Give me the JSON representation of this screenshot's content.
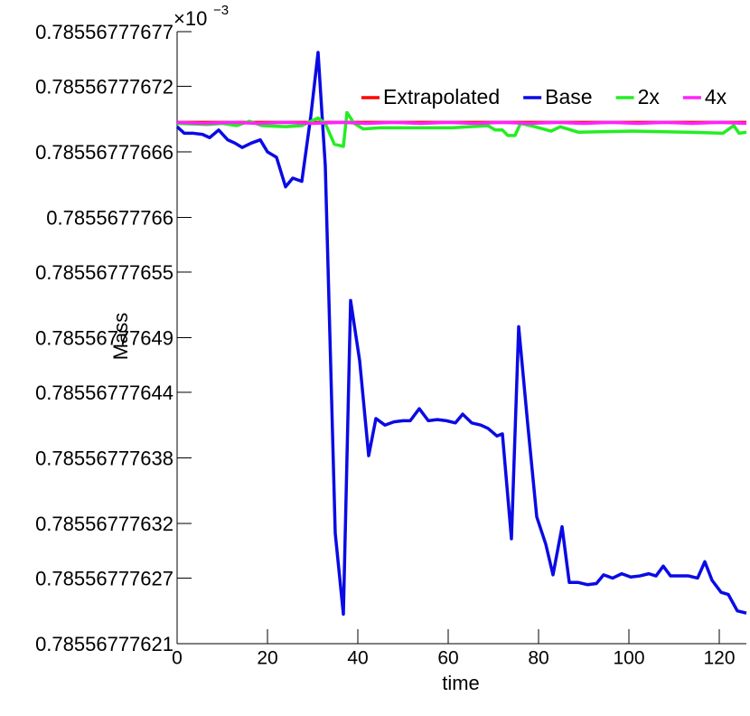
{
  "chart_data": {
    "type": "line",
    "x_label": "time",
    "y_label": "Mass",
    "y_multiplier": "×10",
    "y_multiplier_exponent": "−3",
    "xlim": [
      0,
      126
    ],
    "xticks": [
      0,
      20,
      40,
      60,
      80,
      100,
      120
    ],
    "ylim": [
      0.78556777621,
      0.78556777677
    ],
    "yticks": [
      0.78556777621,
      0.78556777627,
      0.78556777632,
      0.78556777638,
      0.78556777644,
      0.78556777649,
      0.78556777655,
      0.7855677766,
      0.78556777666,
      0.78556777672,
      0.78556777677
    ],
    "legend": "top-right",
    "series": [
      {
        "name": "Extrapolated",
        "color": "#ff0000",
        "x": [
          0,
          126
        ],
        "values": [
          0.785567776687,
          0.785567776687
        ]
      },
      {
        "name": "Base",
        "color": "#0a0ae6",
        "x": [
          0,
          1.6,
          3.6,
          5.6,
          7.2,
          9.2,
          11.2,
          12.8,
          14.4,
          16.4,
          18.4,
          20,
          22,
          24,
          25.6,
          27.6,
          29.6,
          31.2,
          32.8,
          35,
          36.8,
          38.4,
          40.4,
          42.4,
          44,
          46,
          48,
          50,
          51.6,
          53.6,
          55.6,
          57.6,
          59.6,
          61.6,
          63.2,
          65.2,
          67.2,
          68.8,
          70.8,
          72,
          74,
          75.6,
          77.6,
          79.6,
          81.6,
          83.2,
          85.2,
          86.8,
          88.8,
          90.8,
          92.8,
          94.4,
          96.4,
          98.4,
          100.4,
          102.4,
          104.4,
          106,
          107.6,
          109.2,
          111.2,
          113.2,
          115.2,
          116.8,
          118.4,
          120.4,
          122,
          124,
          126
        ],
        "values": [
          0.785567776683,
          0.785567776677,
          0.785567776677,
          0.785567776676,
          0.785567776673,
          0.78556777668,
          0.785567776671,
          0.785567776668,
          0.785567776664,
          0.785567776668,
          0.785567776671,
          0.78556777666,
          0.785567776655,
          0.785567776628,
          0.785567776636,
          0.785567776633,
          0.785567776693,
          0.785567776751,
          0.785567776647,
          0.785567776311,
          0.785567776237,
          0.785567776524,
          0.785567776469,
          0.785567776382,
          0.785567776416,
          0.78556777641,
          0.785567776413,
          0.785567776414,
          0.785567776414,
          0.785567776425,
          0.785567776414,
          0.785567776415,
          0.785567776414,
          0.785567776412,
          0.78556777642,
          0.785567776412,
          0.78556777641,
          0.785567776407,
          0.7855677764,
          0.785567776402,
          0.785567776306,
          0.7855677765,
          0.785567776411,
          0.785567776326,
          0.785567776301,
          0.785567776273,
          0.785567776317,
          0.785567776266,
          0.785567776266,
          0.785567776264,
          0.785567776265,
          0.785567776273,
          0.78556777627,
          0.785567776274,
          0.785567776271,
          0.785567776272,
          0.785567776274,
          0.785567776272,
          0.785567776281,
          0.785567776272,
          0.785567776272,
          0.785567776272,
          0.78556777627,
          0.785567776285,
          0.785567776268,
          0.785567776257,
          0.785567776255,
          0.78556777624,
          0.785567776238
        ]
      },
      {
        "name": "2x",
        "color": "#22ee22",
        "x": [
          0,
          6.8,
          10,
          13.2,
          16,
          18.8,
          24,
          27.6,
          31.2,
          32.8,
          34.8,
          36.8,
          37.6,
          39.2,
          41.2,
          44.8,
          52.8,
          60.8,
          68.8,
          70.4,
          72,
          73.2,
          74.8,
          76,
          79.2,
          82.8,
          84.8,
          88.8,
          100.8,
          112.8,
          120.8,
          123.2,
          124.4,
          126
        ],
        "values": [
          0.785567776686,
          0.785567776685,
          0.785567776686,
          0.785567776684,
          0.785567776688,
          0.785567776684,
          0.785567776683,
          0.785567776684,
          0.785567776691,
          0.785567776686,
          0.785567776667,
          0.785567776665,
          0.785567776696,
          0.785567776686,
          0.785567776681,
          0.785567776682,
          0.785567776682,
          0.785567776682,
          0.785567776684,
          0.78556777668,
          0.78556777668,
          0.785567776675,
          0.785567776675,
          0.785567776686,
          0.785567776683,
          0.785567776679,
          0.785567776683,
          0.785567776678,
          0.785567776679,
          0.785567776678,
          0.785567776677,
          0.785567776684,
          0.785567776677,
          0.785567776678
        ]
      },
      {
        "name": "4x",
        "color": "#ff22ff",
        "x": [
          0,
          6,
          12,
          18,
          24,
          30,
          36,
          42,
          48,
          54,
          60,
          66,
          72,
          78,
          84,
          90,
          96,
          102,
          108,
          114,
          120,
          126
        ],
        "values": [
          0.785567776687,
          0.785567776686,
          0.785567776687,
          0.785567776686,
          0.785567776687,
          0.785567776686,
          0.785567776687,
          0.785567776686,
          0.785567776687,
          0.785567776686,
          0.785567776687,
          0.785567776686,
          0.785567776687,
          0.785567776686,
          0.785567776687,
          0.785567776686,
          0.785567776687,
          0.785567776686,
          0.785567776687,
          0.785567776686,
          0.785567776687,
          0.785567776686
        ]
      }
    ]
  }
}
